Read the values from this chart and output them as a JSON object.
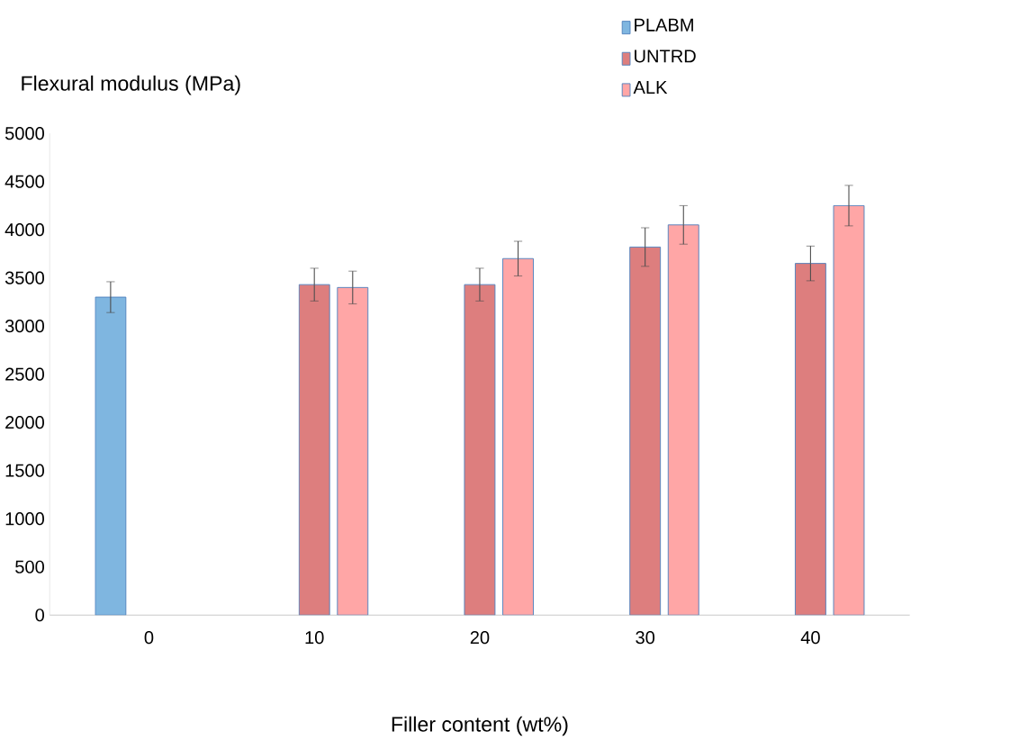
{
  "chart_data": {
    "type": "bar",
    "xlabel": "Filler content (wt%)",
    "ylabel": "Flexural modulus (MPa)",
    "categories": [
      "0",
      "10",
      "20",
      "30",
      "40"
    ],
    "series": [
      {
        "name": "PLABM",
        "color": "#7fb6e0",
        "values": [
          3300,
          null,
          null,
          null,
          null
        ],
        "errors": [
          160,
          null,
          null,
          null,
          null
        ]
      },
      {
        "name": "UNTRD",
        "color": "#dd7e7e",
        "values": [
          null,
          3430,
          3430,
          3820,
          3650
        ],
        "errors": [
          null,
          170,
          170,
          200,
          180
        ]
      },
      {
        "name": "ALK",
        "color": "#ffa6a6",
        "values": [
          null,
          3400,
          3700,
          4050,
          4250
        ],
        "errors": [
          null,
          170,
          180,
          200,
          210
        ]
      }
    ],
    "ylim": [
      0,
      5000
    ],
    "yticks": [
      0,
      500,
      1000,
      1500,
      2000,
      2500,
      3000,
      3500,
      4000,
      4500,
      5000
    ],
    "grid": false,
    "legend": "top right"
  }
}
